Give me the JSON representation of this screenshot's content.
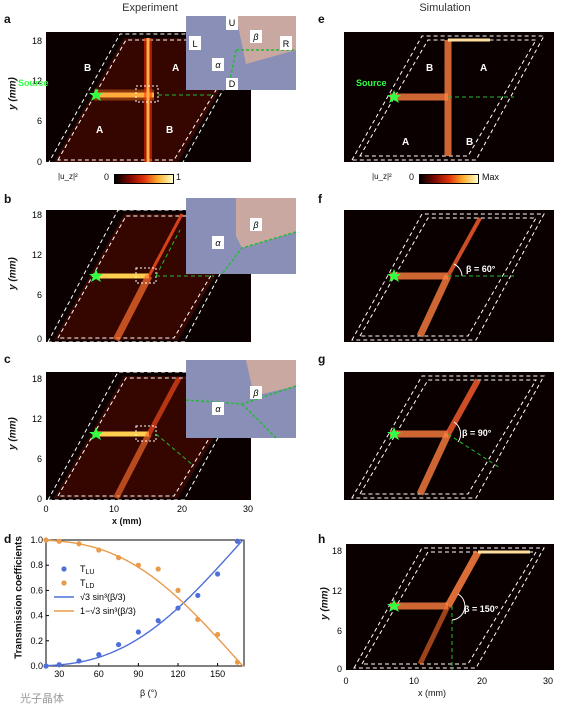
{
  "headers": {
    "experiment": "Experiment",
    "simulation": "Simulation"
  },
  "panel_letters": [
    "a",
    "b",
    "c",
    "d",
    "e",
    "f",
    "g",
    "h"
  ],
  "axes": {
    "y_label": "y (mm)",
    "x_label": "x (mm)",
    "y_ticks": [
      "0",
      "6",
      "12",
      "18"
    ],
    "x_ticks": [
      "0",
      "10",
      "20",
      "30"
    ]
  },
  "regions": {
    "a_top_left": "B",
    "a_top_right": "A",
    "a_bottom_left": "A",
    "a_bottom_right": "B"
  },
  "source_label": "Source",
  "inset_labels": {
    "u": "U",
    "d": "D",
    "l": "L",
    "r": "R",
    "alpha": "α",
    "beta": "β"
  },
  "colorbars": {
    "experiment": {
      "label": "|u_z|²",
      "min": "0",
      "max": "1"
    },
    "simulation": {
      "label": "|u_z|²",
      "min": "0",
      "max": "Max"
    }
  },
  "angle_labels": {
    "f": "β = 60°",
    "g": "β = 90°",
    "h": "β = 150°"
  },
  "watermark": "光子晶体",
  "colors": {
    "hot": "#ffd060",
    "track": "#c82010",
    "dashed_green": "#22bb33",
    "star": "#33ff44",
    "blue": "#4f6fd8",
    "orange": "#e99a4a"
  },
  "chart_data": {
    "type": "scatter",
    "xlabel": "β (°)",
    "ylabel": "Transmission coefficients",
    "xlim": [
      20,
      170
    ],
    "ylim": [
      0,
      1.0
    ],
    "x_ticks": [
      30,
      60,
      90,
      120,
      150
    ],
    "y_ticks": [
      0.0,
      0.2,
      0.4,
      0.6,
      0.8,
      1.0
    ],
    "legend": {
      "position": "center-left",
      "entries": [
        "T_LU",
        "T_LD",
        "√3 sin³(β/3)",
        "1−√3 sin³(β/3)"
      ]
    },
    "series": [
      {
        "name": "T_LU",
        "kind": "points",
        "color": "#4f6fd8",
        "x": [
          20,
          30,
          45,
          60,
          75,
          90,
          105,
          120,
          135,
          150,
          165
        ],
        "y": [
          0.0,
          0.01,
          0.04,
          0.09,
          0.17,
          0.27,
          0.36,
          0.46,
          0.56,
          0.73,
          0.99
        ]
      },
      {
        "name": "T_LD",
        "kind": "points",
        "color": "#e99a4a",
        "x": [
          20,
          30,
          45,
          60,
          75,
          90,
          105,
          120,
          135,
          150,
          165
        ],
        "y": [
          1.0,
          0.99,
          0.97,
          0.92,
          0.86,
          0.8,
          0.77,
          0.6,
          0.37,
          0.25,
          0.03
        ]
      },
      {
        "name": "√3 sin³(β/3)",
        "kind": "curve",
        "color": "#4f6fd8",
        "formula": "sqrt3_sin3_beta_over_3"
      },
      {
        "name": "1−√3 sin³(β/3)",
        "kind": "curve",
        "color": "#e99a4a",
        "formula": "one_minus_sqrt3_sin3_beta_over_3"
      }
    ]
  }
}
